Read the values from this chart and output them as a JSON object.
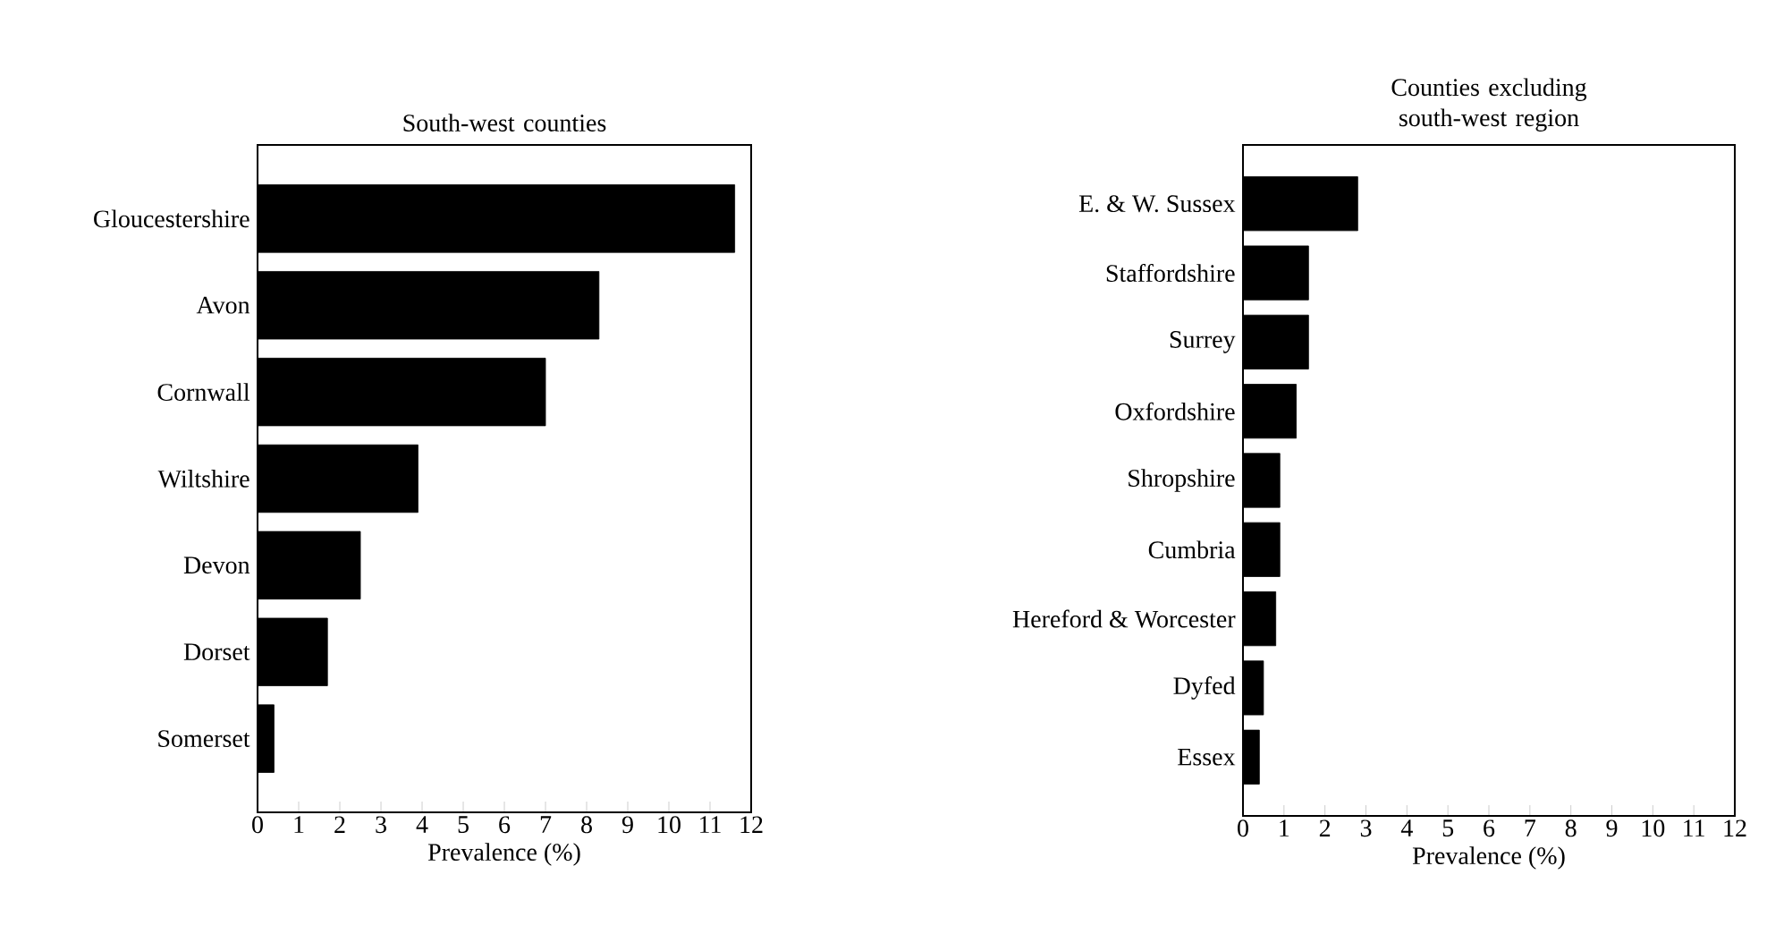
{
  "chart_data": [
    {
      "type": "bar",
      "orientation": "horizontal",
      "title": "South-west counties",
      "xlabel": "Prevalence (%)",
      "categories": [
        "Gloucestershire",
        "Avon",
        "Cornwall",
        "Wiltshire",
        "Devon",
        "Dorset",
        "Somerset"
      ],
      "values": [
        11.6,
        8.3,
        7.0,
        3.9,
        2.5,
        1.7,
        0.4
      ],
      "color": "#000000",
      "xlim": [
        0,
        12
      ],
      "xticks": [
        0,
        1,
        2,
        3,
        4,
        5,
        6,
        7,
        8,
        9,
        10,
        11,
        12
      ]
    },
    {
      "type": "bar",
      "orientation": "horizontal",
      "title": "Counties excluding south-west region",
      "xlabel": "Prevalence (%)",
      "categories": [
        "E. & W. Sussex",
        "Staffordshire",
        "Surrey",
        "Oxfordshire",
        "Shropshire",
        "Cumbria",
        "Hereford & Worcester",
        "Dyfed",
        "Essex"
      ],
      "values": [
        2.8,
        1.6,
        1.6,
        1.3,
        0.9,
        0.9,
        0.8,
        0.5,
        0.4
      ],
      "color": "#000000",
      "xlim": [
        0,
        12
      ],
      "xticks": [
        0,
        1,
        2,
        3,
        4,
        5,
        6,
        7,
        8,
        9,
        10,
        11,
        12
      ]
    }
  ]
}
